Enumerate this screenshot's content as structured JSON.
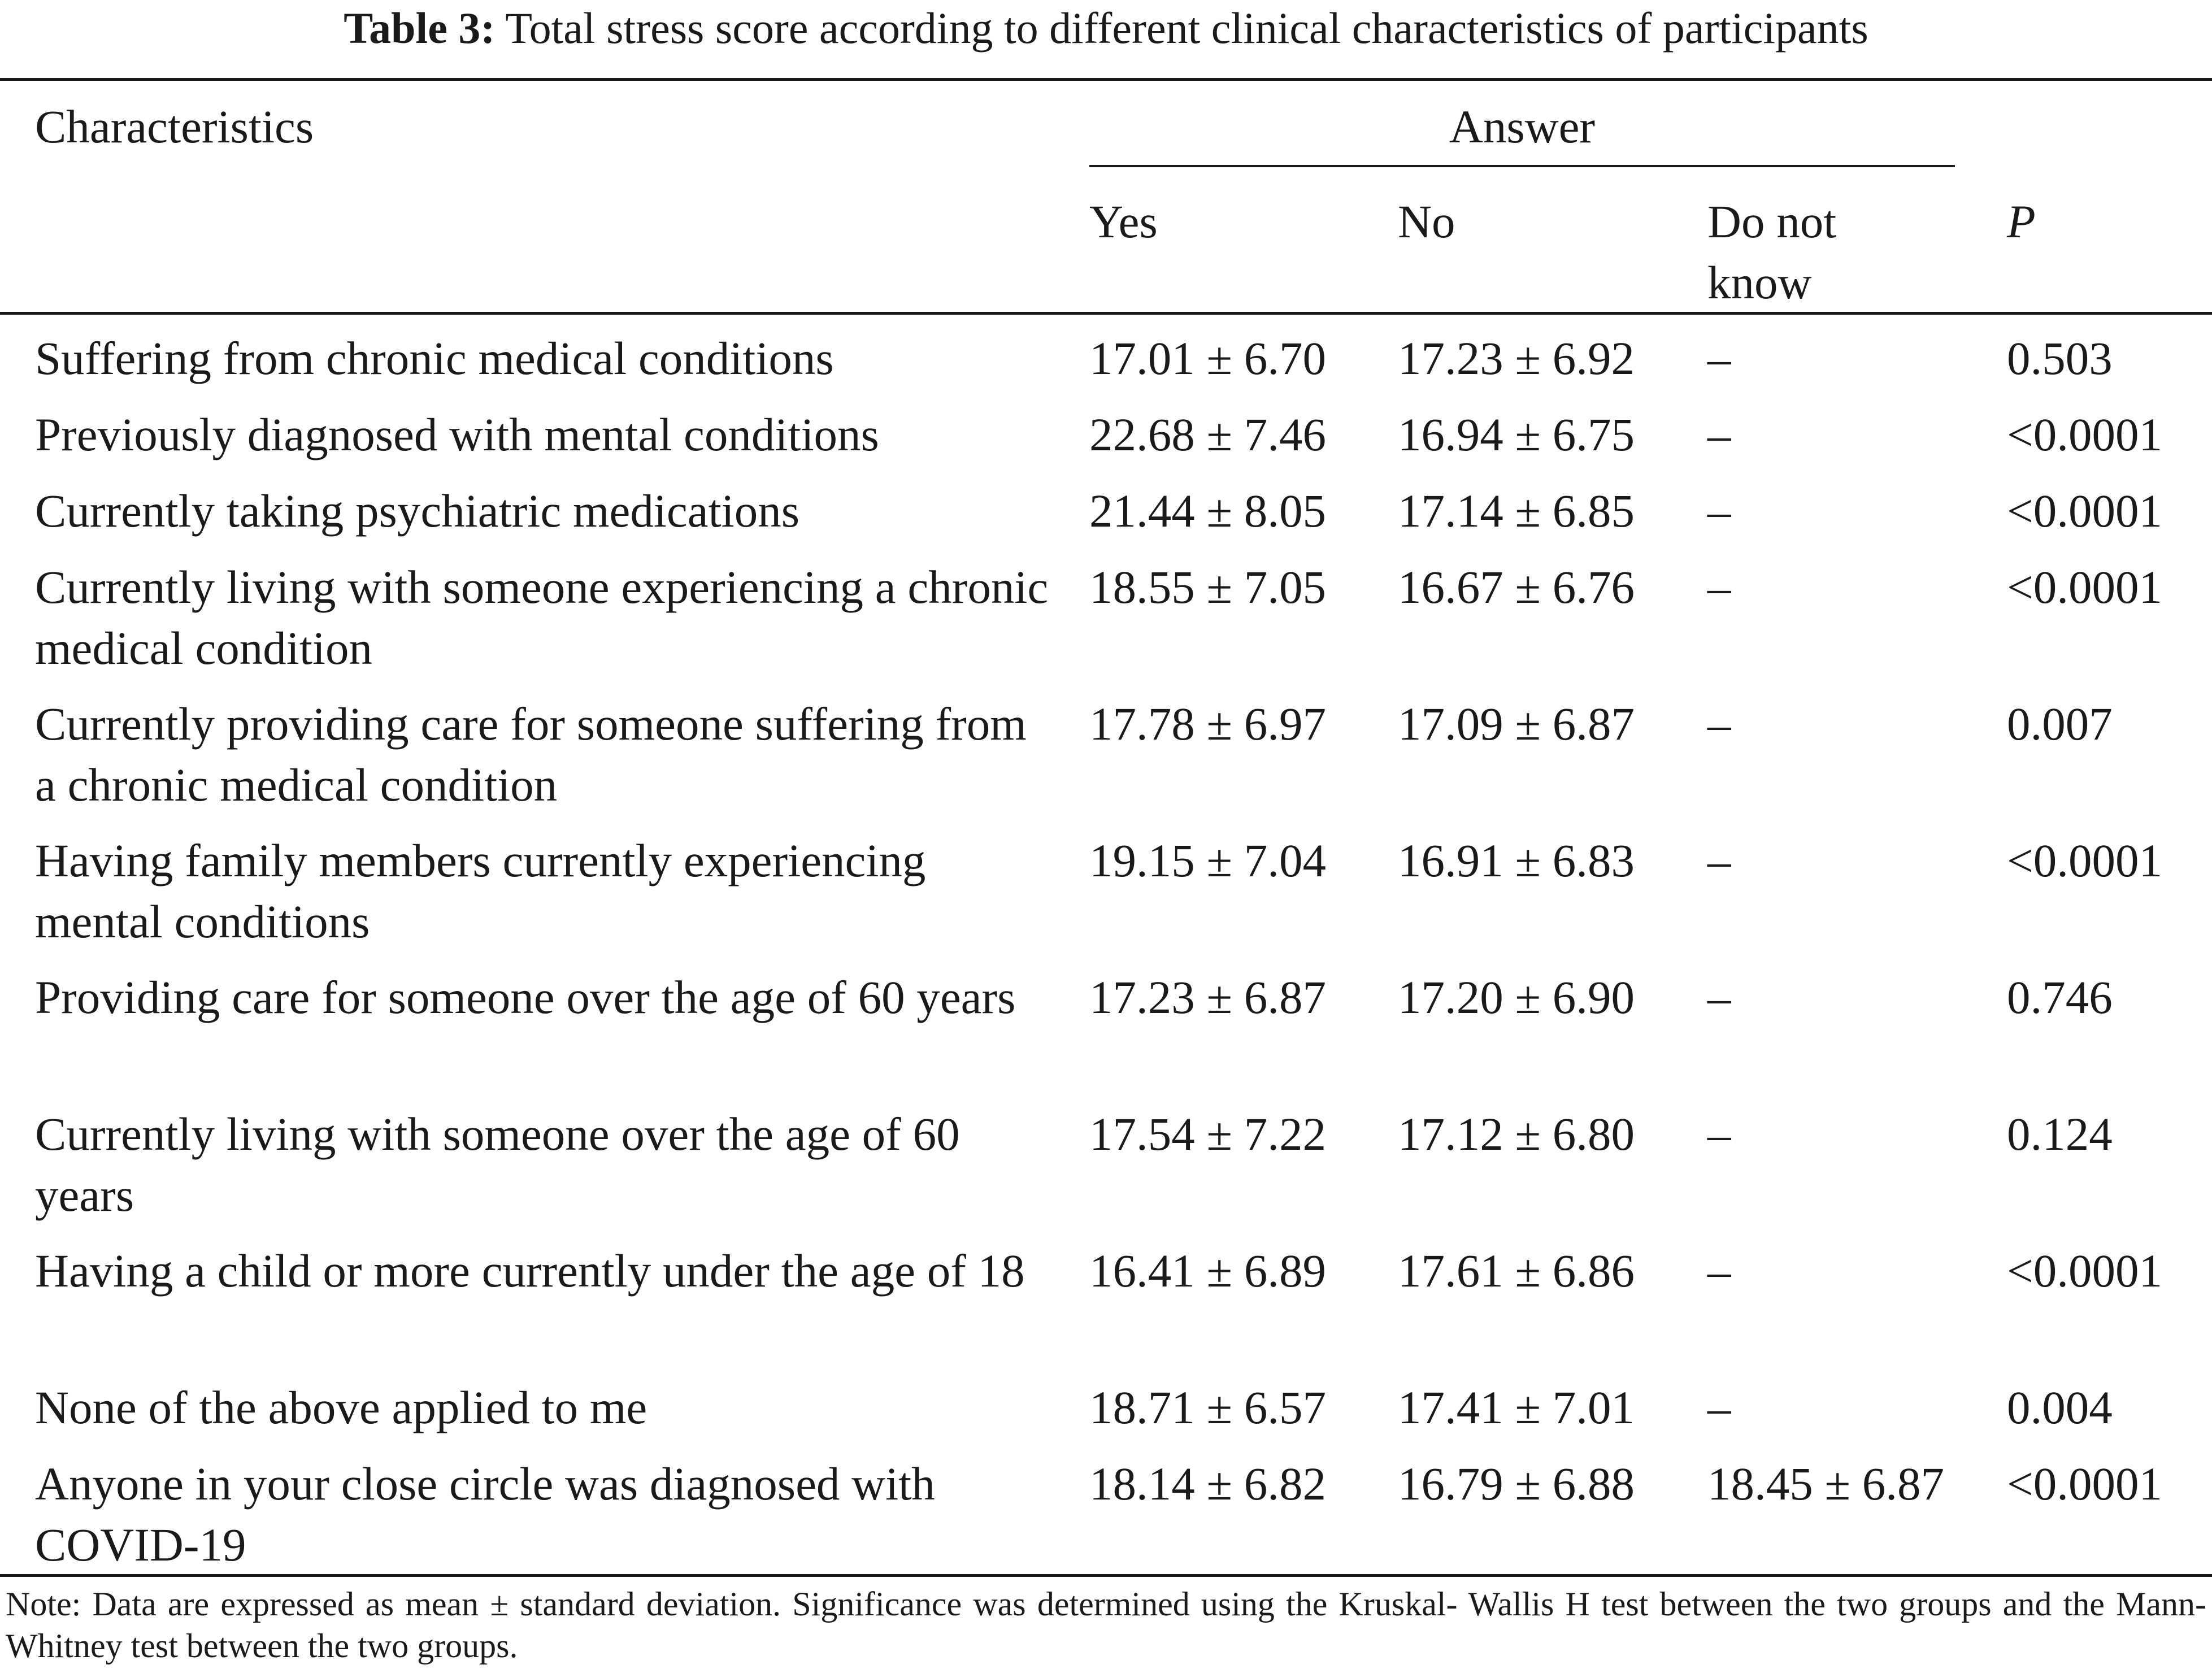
{
  "caption": {
    "label": "Table 3:",
    "text": "Total stress score according to different clinical characteristics of participants"
  },
  "headers": {
    "characteristics": "Characteristics",
    "answer": "Answer",
    "yes": "Yes",
    "no": "No",
    "do_not_know": "Do not know",
    "p": "P"
  },
  "rows": [
    {
      "characteristic": "Suffering from chronic medical conditions",
      "yes": "17.01 ± 6.70",
      "no": "17.23 ± 6.92",
      "do_not_know": "–",
      "p": "0.503"
    },
    {
      "characteristic": "Previously diagnosed with mental conditions",
      "yes": "22.68 ± 7.46",
      "no": "16.94 ± 6.75",
      "do_not_know": "–",
      "p": "<0.0001"
    },
    {
      "characteristic": "Currently taking psychiatric medications",
      "yes": "21.44 ± 8.05",
      "no": "17.14 ± 6.85",
      "do_not_know": "–",
      "p": "<0.0001"
    },
    {
      "characteristic": "Currently living with someone experiencing a chronic medical condition",
      "yes": "18.55 ± 7.05",
      "no": "16.67 ± 6.76",
      "do_not_know": "–",
      "p": "<0.0001"
    },
    {
      "characteristic": "Currently providing care for someone suffering from a chronic medical condition",
      "yes": "17.78 ± 6.97",
      "no": "17.09 ± 6.87",
      "do_not_know": "–",
      "p": "0.007"
    },
    {
      "characteristic": "Having family members currently experiencing mental conditions",
      "yes": "19.15 ± 7.04",
      "no": "16.91 ± 6.83",
      "do_not_know": "–",
      "p": "<0.0001"
    },
    {
      "characteristic": "Providing care for someone over the age of 60 years",
      "yes": "17.23 ± 6.87",
      "no": "17.20 ± 6.90",
      "do_not_know": "–",
      "p": "0.746"
    },
    {
      "characteristic": "Currently living with someone over the age of 60 years",
      "yes": "17.54 ± 7.22",
      "no": "17.12 ± 6.80",
      "do_not_know": "–",
      "p": "0.124"
    },
    {
      "characteristic": "Having a child or more currently under the age of 18",
      "yes": "16.41 ± 6.89",
      "no": "17.61 ± 6.86",
      "do_not_know": "–",
      "p": "<0.0001"
    },
    {
      "characteristic": "None of the above applied to me",
      "yes": "18.71 ± 6.57",
      "no": "17.41 ± 7.01",
      "do_not_know": "–",
      "p": "0.004"
    },
    {
      "characteristic": "Anyone in your close circle was diagnosed with COVID-19",
      "yes": "18.14 ± 6.82",
      "no": "16.79 ± 6.88",
      "do_not_know": "18.45 ± 6.87",
      "p": "<0.0001"
    }
  ],
  "note": "Note: Data are expressed as mean ± standard deviation. Significance was determined using the Kruskal- Wallis H test between the two groups and the Mann-Whitney test between the two groups."
}
